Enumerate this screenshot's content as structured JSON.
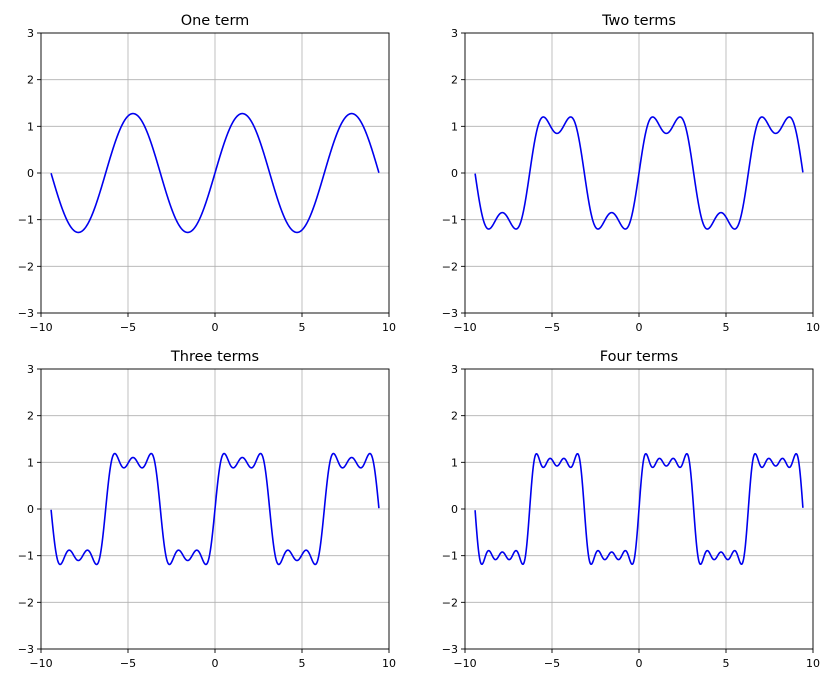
{
  "chart_data": [
    {
      "type": "line",
      "title": "One term",
      "terms": 1,
      "function": "sum_{k=1..terms} (4/pi) * sin((2k-1) x) / (2k-1)",
      "x_range": [
        -9.42,
        9.42
      ],
      "xlim": [
        -10,
        10
      ],
      "ylim": [
        -3,
        3
      ],
      "xticks": [
        -10,
        -5,
        0,
        5,
        10
      ],
      "yticks": [
        -3,
        -2,
        -1,
        0,
        1,
        2,
        3
      ],
      "xtick_labels": [
        "−10",
        "−5",
        "0",
        "5",
        "10"
      ],
      "ytick_labels": [
        "−3",
        "−2",
        "−1",
        "0",
        "1",
        "2",
        "3"
      ],
      "grid": true,
      "series": [
        {
          "color": "#0000ee"
        }
      ]
    },
    {
      "type": "line",
      "title": "Two terms",
      "terms": 2,
      "function": "sum_{k=1..terms} (4/pi) * sin((2k-1) x) / (2k-1)",
      "x_range": [
        -9.42,
        9.42
      ],
      "xlim": [
        -10,
        10
      ],
      "ylim": [
        -3,
        3
      ],
      "xticks": [
        -10,
        -5,
        0,
        5,
        10
      ],
      "yticks": [
        -3,
        -2,
        -1,
        0,
        1,
        2,
        3
      ],
      "xtick_labels": [
        "−10",
        "−5",
        "0",
        "5",
        "10"
      ],
      "ytick_labels": [
        "−3",
        "−2",
        "−1",
        "0",
        "1",
        "2",
        "3"
      ],
      "grid": true,
      "series": [
        {
          "color": "#0000ee"
        }
      ]
    },
    {
      "type": "line",
      "title": "Three terms",
      "terms": 3,
      "function": "sum_{k=1..terms} (4/pi) * sin((2k-1) x) / (2k-1)",
      "x_range": [
        -9.42,
        9.42
      ],
      "xlim": [
        -10,
        10
      ],
      "ylim": [
        -3,
        3
      ],
      "xticks": [
        -10,
        -5,
        0,
        5,
        10
      ],
      "yticks": [
        -3,
        -2,
        -1,
        0,
        1,
        2,
        3
      ],
      "xtick_labels": [
        "−10",
        "−5",
        "0",
        "5",
        "10"
      ],
      "ytick_labels": [
        "−3",
        "−2",
        "−1",
        "0",
        "1",
        "2",
        "3"
      ],
      "grid": true,
      "series": [
        {
          "color": "#0000ee"
        }
      ]
    },
    {
      "type": "line",
      "title": "Four terms",
      "terms": 4,
      "function": "sum_{k=1..terms} (4/pi) * sin((2k-1) x) / (2k-1)",
      "x_range": [
        -9.42,
        9.42
      ],
      "xlim": [
        -10,
        10
      ],
      "ylim": [
        -3,
        3
      ],
      "xticks": [
        -10,
        -5,
        0,
        5,
        10
      ],
      "yticks": [
        -3,
        -2,
        -1,
        0,
        1,
        2,
        3
      ],
      "xtick_labels": [
        "−10",
        "−5",
        "0",
        "5",
        "10"
      ],
      "ytick_labels": [
        "−3",
        "−2",
        "−1",
        "0",
        "1",
        "2",
        "3"
      ],
      "grid": true,
      "series": [
        {
          "color": "#0000ee"
        }
      ]
    }
  ]
}
